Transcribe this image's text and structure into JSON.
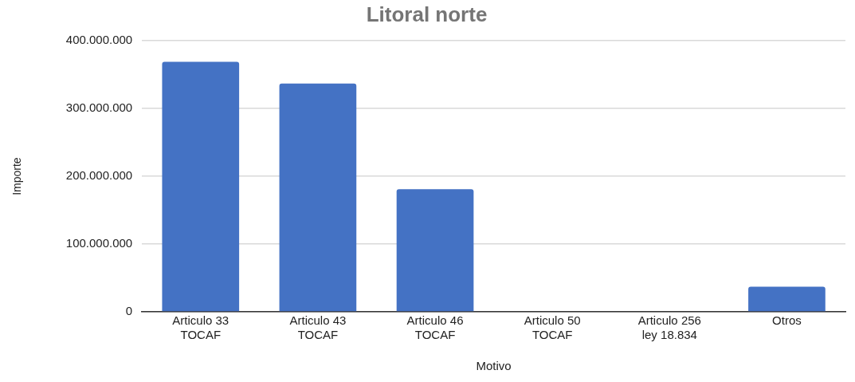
{
  "chart_data": {
    "type": "bar",
    "title": "Litoral norte",
    "xlabel": "Motivo",
    "ylabel": "Importe",
    "categories": [
      "Articulo 33\nTOCAF",
      "Articulo 43\nTOCAF",
      "Articulo 46\nTOCAF",
      "Articulo 50\nTOCAF",
      "Articulo 256\nley 18.834",
      "Otros"
    ],
    "values": [
      369000000,
      337000000,
      181000000,
      1000000,
      1000000,
      37000000
    ],
    "color": "#4472c4",
    "ylim": [
      0,
      400000000
    ],
    "yticks": [
      {
        "value": 0,
        "label": "0"
      },
      {
        "value": 100000000,
        "label": "100.000.000"
      },
      {
        "value": 200000000,
        "label": "200.000.000"
      },
      {
        "value": 300000000,
        "label": "300.000.000"
      },
      {
        "value": 400000000,
        "label": "400.000.000"
      }
    ],
    "grid": "y",
    "legend": false
  }
}
